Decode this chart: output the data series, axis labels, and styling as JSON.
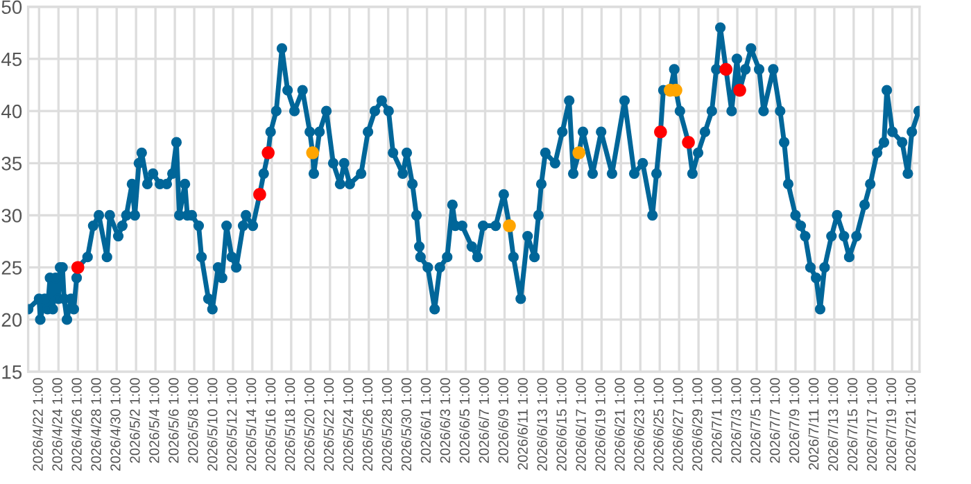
{
  "chart_data": {
    "type": "line",
    "xlim": [
      "2026-04-20T22:00",
      "2026-07-21T20:00"
    ],
    "ylim": [
      15,
      50
    ],
    "yticks": [
      15,
      20,
      25,
      30,
      35,
      40,
      45,
      50
    ],
    "xticks": [
      {
        "value": "2026-04-22T01:00",
        "label": "2026/4/22 1:00"
      },
      {
        "value": "2026-04-24T01:00",
        "label": "2026/4/24 1:00"
      },
      {
        "value": "2026-04-26T01:00",
        "label": "2026/4/26 1:00"
      },
      {
        "value": "2026-04-28T01:00",
        "label": "2026/4/28 1:00"
      },
      {
        "value": "2026-04-30T01:00",
        "label": "2026/4/30 1:00"
      },
      {
        "value": "2026-05-02T01:00",
        "label": "2026/5/2 1:00"
      },
      {
        "value": "2026-05-04T01:00",
        "label": "2026/5/4 1:00"
      },
      {
        "value": "2026-05-06T01:00",
        "label": "2026/5/6 1:00"
      },
      {
        "value": "2026-05-08T01:00",
        "label": "2026/5/8 1:00"
      },
      {
        "value": "2026-05-10T01:00",
        "label": "2026/5/10 1:00"
      },
      {
        "value": "2026-05-12T01:00",
        "label": "2026/5/12 1:00"
      },
      {
        "value": "2026-05-14T01:00",
        "label": "2026/5/14 1:00"
      },
      {
        "value": "2026-05-16T01:00",
        "label": "2026/5/16 1:00"
      },
      {
        "value": "2026-05-18T01:00",
        "label": "2026/5/18 1:00"
      },
      {
        "value": "2026-05-20T01:00",
        "label": "2026/5/20 1:00"
      },
      {
        "value": "2026-05-22T01:00",
        "label": "2026/5/22 1:00"
      },
      {
        "value": "2026-05-24T01:00",
        "label": "2026/5/24 1:00"
      },
      {
        "value": "2026-05-26T01:00",
        "label": "2026/5/26 1:00"
      },
      {
        "value": "2026-05-28T01:00",
        "label": "2026/5/28 1:00"
      },
      {
        "value": "2026-05-30T01:00",
        "label": "2026/5/30 1:00"
      },
      {
        "value": "2026-06-01T01:00",
        "label": "2026/6/1 1:00"
      },
      {
        "value": "2026-06-03T01:00",
        "label": "2026/6/3 1:00"
      },
      {
        "value": "2026-06-05T01:00",
        "label": "2026/6/5 1:00"
      },
      {
        "value": "2026-06-07T01:00",
        "label": "2026/6/7 1:00"
      },
      {
        "value": "2026-06-09T01:00",
        "label": "2026/6/9 1:00"
      },
      {
        "value": "2026-06-11T01:00",
        "label": "2026/6/11 1:00"
      },
      {
        "value": "2026-06-13T01:00",
        "label": "2026/6/13 1:00"
      },
      {
        "value": "2026-06-15T01:00",
        "label": "2026/6/15 1:00"
      },
      {
        "value": "2026-06-17T01:00",
        "label": "2026/6/17 1:00"
      },
      {
        "value": "2026-06-19T01:00",
        "label": "2026/6/19 1:00"
      },
      {
        "value": "2026-06-21T01:00",
        "label": "2026/6/21 1:00"
      },
      {
        "value": "2026-06-23T01:00",
        "label": "2026/6/23 1:00"
      },
      {
        "value": "2026-06-25T01:00",
        "label": "2026/6/25 1:00"
      },
      {
        "value": "2026-06-27T01:00",
        "label": "2026/6/27 1:00"
      },
      {
        "value": "2026-06-29T01:00",
        "label": "2026/6/29 1:00"
      },
      {
        "value": "2026-07-01T01:00",
        "label": "2026/7/1 1:00"
      },
      {
        "value": "2026-07-03T01:00",
        "label": "2026/7/3 1:00"
      },
      {
        "value": "2026-07-05T01:00",
        "label": "2026/7/5 1:00"
      },
      {
        "value": "2026-07-07T01:00",
        "label": "2026/7/7 1:00"
      },
      {
        "value": "2026-07-09T01:00",
        "label": "2026/7/9 1:00"
      },
      {
        "value": "2026-07-11T01:00",
        "label": "2026/7/11 1:00"
      },
      {
        "value": "2026-07-13T01:00",
        "label": "2026/7/13 1:00"
      },
      {
        "value": "2026-07-15T01:00",
        "label": "2026/7/15 1:00"
      },
      {
        "value": "2026-07-17T01:00",
        "label": "2026/7/17 1:00"
      },
      {
        "value": "2026-07-19T01:00",
        "label": "2026/7/19 1:00"
      },
      {
        "value": "2026-07-21T01:00",
        "label": "2026/7/21 1:00"
      }
    ],
    "grid": true,
    "marker": "circle",
    "line_style": "solid",
    "series": [
      {
        "color": "#006699",
        "x": [
          "2026-04-20T22:00",
          "2026-04-22T01:00",
          "2026-04-22T04:00",
          "2026-04-22T15:00",
          "2026-04-22T22:00",
          "2026-04-23T04:00",
          "2026-04-23T11:00",
          "2026-04-23T18:00",
          "2026-04-24T01:00",
          "2026-04-24T05:00",
          "2026-04-24T11:00",
          "2026-04-24T15:00",
          "2026-04-24T22:00",
          "2026-04-25T08:00",
          "2026-04-25T15:00",
          "2026-04-25T22:00",
          "2026-04-26T01:00",
          "2026-04-27T01:00",
          "2026-04-27T15:00",
          "2026-04-28T05:00",
          "2026-04-29T01:00",
          "2026-04-29T08:00",
          "2026-04-30T05:00",
          "2026-04-30T15:00",
          "2026-05-01T01:00",
          "2026-05-01T15:00",
          "2026-05-01T22:00",
          "2026-05-02T08:00",
          "2026-05-02T15:00",
          "2026-05-03T05:00",
          "2026-05-03T19:00",
          "2026-05-04T12:00",
          "2026-05-05T05:00",
          "2026-05-05T19:00",
          "2026-05-06T05:00",
          "2026-05-06T12:00",
          "2026-05-07T02:00",
          "2026-05-07T08:00",
          "2026-05-07T19:00",
          "2026-05-08T12:00",
          "2026-05-08T19:00",
          "2026-05-09T12:00",
          "2026-05-09T22:00",
          "2026-05-10T12:00",
          "2026-05-10T22:00",
          "2026-05-11T09:00",
          "2026-05-11T22:00",
          "2026-05-12T09:00",
          "2026-05-13T02:00",
          "2026-05-13T09:00",
          "2026-05-14T02:00",
          "2026-05-14T19:00",
          "2026-05-15T05:00",
          "2026-05-15T16:00",
          "2026-05-15T22:00",
          "2026-05-16T12:00",
          "2026-05-17T02:00",
          "2026-05-17T16:00",
          "2026-05-18T09:00",
          "2026-05-19T05:00",
          "2026-05-19T23:00",
          "2026-05-20T06:00",
          "2026-05-20T09:00",
          "2026-05-20T23:00",
          "2026-05-21T16:00",
          "2026-05-22T09:00",
          "2026-05-23T02:00",
          "2026-05-23T12:00",
          "2026-05-24T02:00",
          "2026-05-25T06:00",
          "2026-05-25T23:00",
          "2026-05-26T16:00",
          "2026-05-27T09:00",
          "2026-05-28T02:00",
          "2026-05-28T13:00",
          "2026-05-29T13:00",
          "2026-05-29T23:00",
          "2026-05-30T13:00",
          "2026-05-30T23:00",
          "2026-05-31T06:00",
          "2026-05-31T09:00",
          "2026-06-01T03:00",
          "2026-06-01T20:00",
          "2026-06-02T09:00",
          "2026-06-03T03:00",
          "2026-06-03T16:00",
          "2026-06-03T23:00",
          "2026-06-04T16:00",
          "2026-06-05T16:00",
          "2026-06-06T06:00",
          "2026-06-06T20:00",
          "2026-06-08T03:00",
          "2026-06-08T23:00",
          "2026-06-09T13:00",
          "2026-06-09T23:00",
          "2026-06-10T17:00",
          "2026-06-11T10:00",
          "2026-06-12T03:00",
          "2026-06-12T13:00",
          "2026-06-12T20:00",
          "2026-06-13T06:00",
          "2026-06-14T06:00",
          "2026-06-15T00:00",
          "2026-06-15T17:00",
          "2026-06-16T03:00",
          "2026-06-16T17:00",
          "2026-06-17T03:00",
          "2026-06-18T03:00",
          "2026-06-19T00:00",
          "2026-06-20T03:00",
          "2026-06-21T10:00",
          "2026-06-22T10:00",
          "2026-06-23T07:00",
          "2026-06-24T07:00",
          "2026-06-24T17:00",
          "2026-06-25T03:00",
          "2026-06-25T10:00",
          "2026-06-26T03:00",
          "2026-06-26T13:00",
          "2026-06-26T17:00",
          "2026-06-27T03:00",
          "2026-06-28T00:00",
          "2026-06-28T10:00",
          "2026-06-29T00:00",
          "2026-06-29T17:00",
          "2026-06-30T10:00",
          "2026-06-30T21:00",
          "2026-07-01T07:00",
          "2026-07-01T21:00",
          "2026-07-02T11:00",
          "2026-07-03T00:00",
          "2026-07-03T07:00",
          "2026-07-03T21:00",
          "2026-07-04T11:00",
          "2026-07-05T07:00",
          "2026-07-05T18:00",
          "2026-07-06T18:00",
          "2026-07-07T11:00",
          "2026-07-07T21:00",
          "2026-07-08T07:00",
          "2026-07-09T01:00",
          "2026-07-09T14:00",
          "2026-07-10T01:00",
          "2026-07-10T14:00",
          "2026-07-11T04:00",
          "2026-07-11T14:00",
          "2026-07-12T01:00",
          "2026-07-12T18:00",
          "2026-07-13T08:00",
          "2026-07-14T01:00",
          "2026-07-14T14:00",
          "2026-07-15T08:00",
          "2026-07-16T04:00",
          "2026-07-16T18:00",
          "2026-07-17T11:00",
          "2026-07-18T04:00",
          "2026-07-18T11:00",
          "2026-07-19T01:00",
          "2026-07-20T01:00",
          "2026-07-20T15:00",
          "2026-07-21T01:00",
          "2026-07-21T18:00"
        ],
        "values": [
          21,
          22,
          20,
          22,
          21,
          24,
          21,
          24,
          22,
          25,
          25,
          22,
          20,
          22,
          21,
          24,
          25,
          26,
          29,
          30,
          26,
          30,
          28,
          29,
          30,
          33,
          30,
          35,
          36,
          33,
          34,
          33,
          33,
          34,
          37,
          30,
          33,
          30,
          30,
          29,
          26,
          22,
          21,
          25,
          24,
          29,
          26,
          25,
          29,
          30,
          29,
          32,
          34,
          36,
          38,
          40,
          46,
          42,
          40,
          42,
          38,
          36,
          34,
          38,
          40,
          35,
          33,
          35,
          33,
          34,
          38,
          40,
          41,
          40,
          36,
          34,
          36,
          33,
          30,
          27,
          26,
          25,
          21,
          25,
          26,
          31,
          29,
          29,
          27,
          26,
          29,
          29,
          32,
          29,
          26,
          22,
          28,
          26,
          30,
          33,
          36,
          35,
          38,
          41,
          34,
          36,
          38,
          34,
          38,
          34,
          41,
          34,
          35,
          30,
          34,
          38,
          42,
          42,
          44,
          42,
          40,
          37,
          34,
          36,
          38,
          40,
          44,
          48,
          44,
          40,
          45,
          42,
          44,
          46,
          44,
          40,
          44,
          40,
          37,
          33,
          30,
          29,
          28,
          25,
          24,
          21,
          25,
          28,
          30,
          28,
          26,
          28,
          31,
          33,
          36,
          37,
          42,
          38,
          37,
          34,
          38,
          40
        ]
      },
      {
        "type": "scatter",
        "color": "#ff0000",
        "x": [
          "2026-04-26T01:00",
          "2026-05-14T19:00",
          "2026-05-15T16:00",
          "2026-06-25T03:00",
          "2026-06-28T00:00",
          "2026-07-01T21:00",
          "2026-07-03T07:00"
        ],
        "values": [
          25,
          32,
          36,
          38,
          37,
          44,
          42
        ]
      },
      {
        "type": "scatter",
        "color": "#ffa500",
        "x": [
          "2026-05-20T06:00",
          "2026-06-09T13:00",
          "2026-06-16T17:00",
          "2026-06-26T03:00",
          "2026-06-26T17:00"
        ],
        "values": [
          36,
          29,
          36,
          42,
          42
        ]
      }
    ]
  }
}
